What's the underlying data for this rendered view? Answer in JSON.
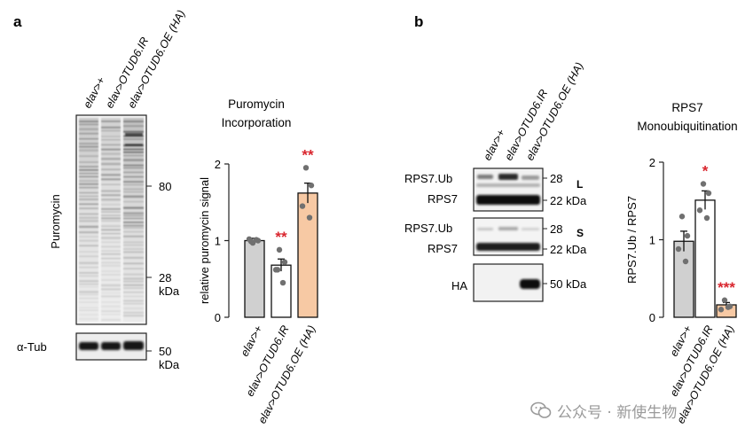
{
  "panel_a": {
    "label": "a",
    "lanes": [
      "elav>+",
      "elav>OTUD6.IR",
      "elav>OTUD6.OE (HA)"
    ],
    "blot_main_label": "Puromycin",
    "blot_tub_label": "α-Tub",
    "markers": [
      {
        "value": "80"
      },
      {
        "value": "28",
        "unit": "kDa"
      }
    ],
    "tub_marker": {
      "value": "50",
      "unit": "kDa"
    }
  },
  "panel_b": {
    "label": "b",
    "lanes": [
      "elav>+",
      "elav>OTUD6.IR",
      "elav>OTUD6.OE (HA)"
    ],
    "row_labels": {
      "L_ub": "RPS7.Ub",
      "L_rps": "RPS7",
      "S_ub": "RPS7.Ub",
      "S_rps": "RPS7",
      "ha": "HA"
    },
    "exposure_L": "L",
    "exposure_S": "S",
    "markers": {
      "L_28": "28",
      "L_22": "22 kDa",
      "S_28": "28",
      "S_22": "22 kDa",
      "ha_50": "50 kDa"
    }
  },
  "chart_data": [
    {
      "type": "bar",
      "title": "Puromycin Incorporation",
      "ylabel": "relative puromycin signal",
      "categories": [
        "elav>+",
        "elav>OTUD6.IR",
        "elav>OTUD6.OE (HA)"
      ],
      "values": [
        1.0,
        0.68,
        1.62
      ],
      "errors": [
        0.03,
        0.08,
        0.13
      ],
      "points": [
        [
          0.97,
          1.0,
          1.02,
          1.01,
          0.99
        ],
        [
          0.88,
          0.72,
          0.62,
          0.45,
          0.62
        ],
        [
          1.95,
          1.72,
          1.45,
          1.3
        ]
      ],
      "significance": [
        "",
        "**",
        "**"
      ],
      "ylim": [
        0,
        2
      ],
      "yticks": [
        "0",
        "1",
        "2"
      ],
      "bar_colors": [
        "#d0d0d0",
        "#ffffff",
        "#f7c9a4"
      ],
      "significance_color": "#d9262e"
    },
    {
      "type": "bar",
      "title": "RPS7 Monoubiquitination",
      "ylabel": "RPS7.Ub / RPS7",
      "categories": [
        "elav>+",
        "elav>OTUD6.IR",
        "elav>OTUD6.OE (HA)"
      ],
      "values": [
        0.98,
        1.51,
        0.16
      ],
      "errors": [
        0.13,
        0.12,
        0.03
      ],
      "points": [
        [
          1.3,
          1.05,
          0.88,
          0.72
        ],
        [
          1.72,
          1.6,
          1.38,
          1.28
        ],
        [
          0.22,
          0.14,
          0.1,
          0.13
        ]
      ],
      "significance": [
        "",
        "*",
        "***"
      ],
      "ylim": [
        0,
        2
      ],
      "yticks": [
        "0",
        "1",
        "2"
      ],
      "bar_colors": [
        "#d0d0d0",
        "#ffffff",
        "#f7c9a4"
      ],
      "significance_color": "#d9262e"
    }
  ],
  "watermark": {
    "text": "公众号 · 新使生物",
    "icon": "wechat-icon"
  }
}
